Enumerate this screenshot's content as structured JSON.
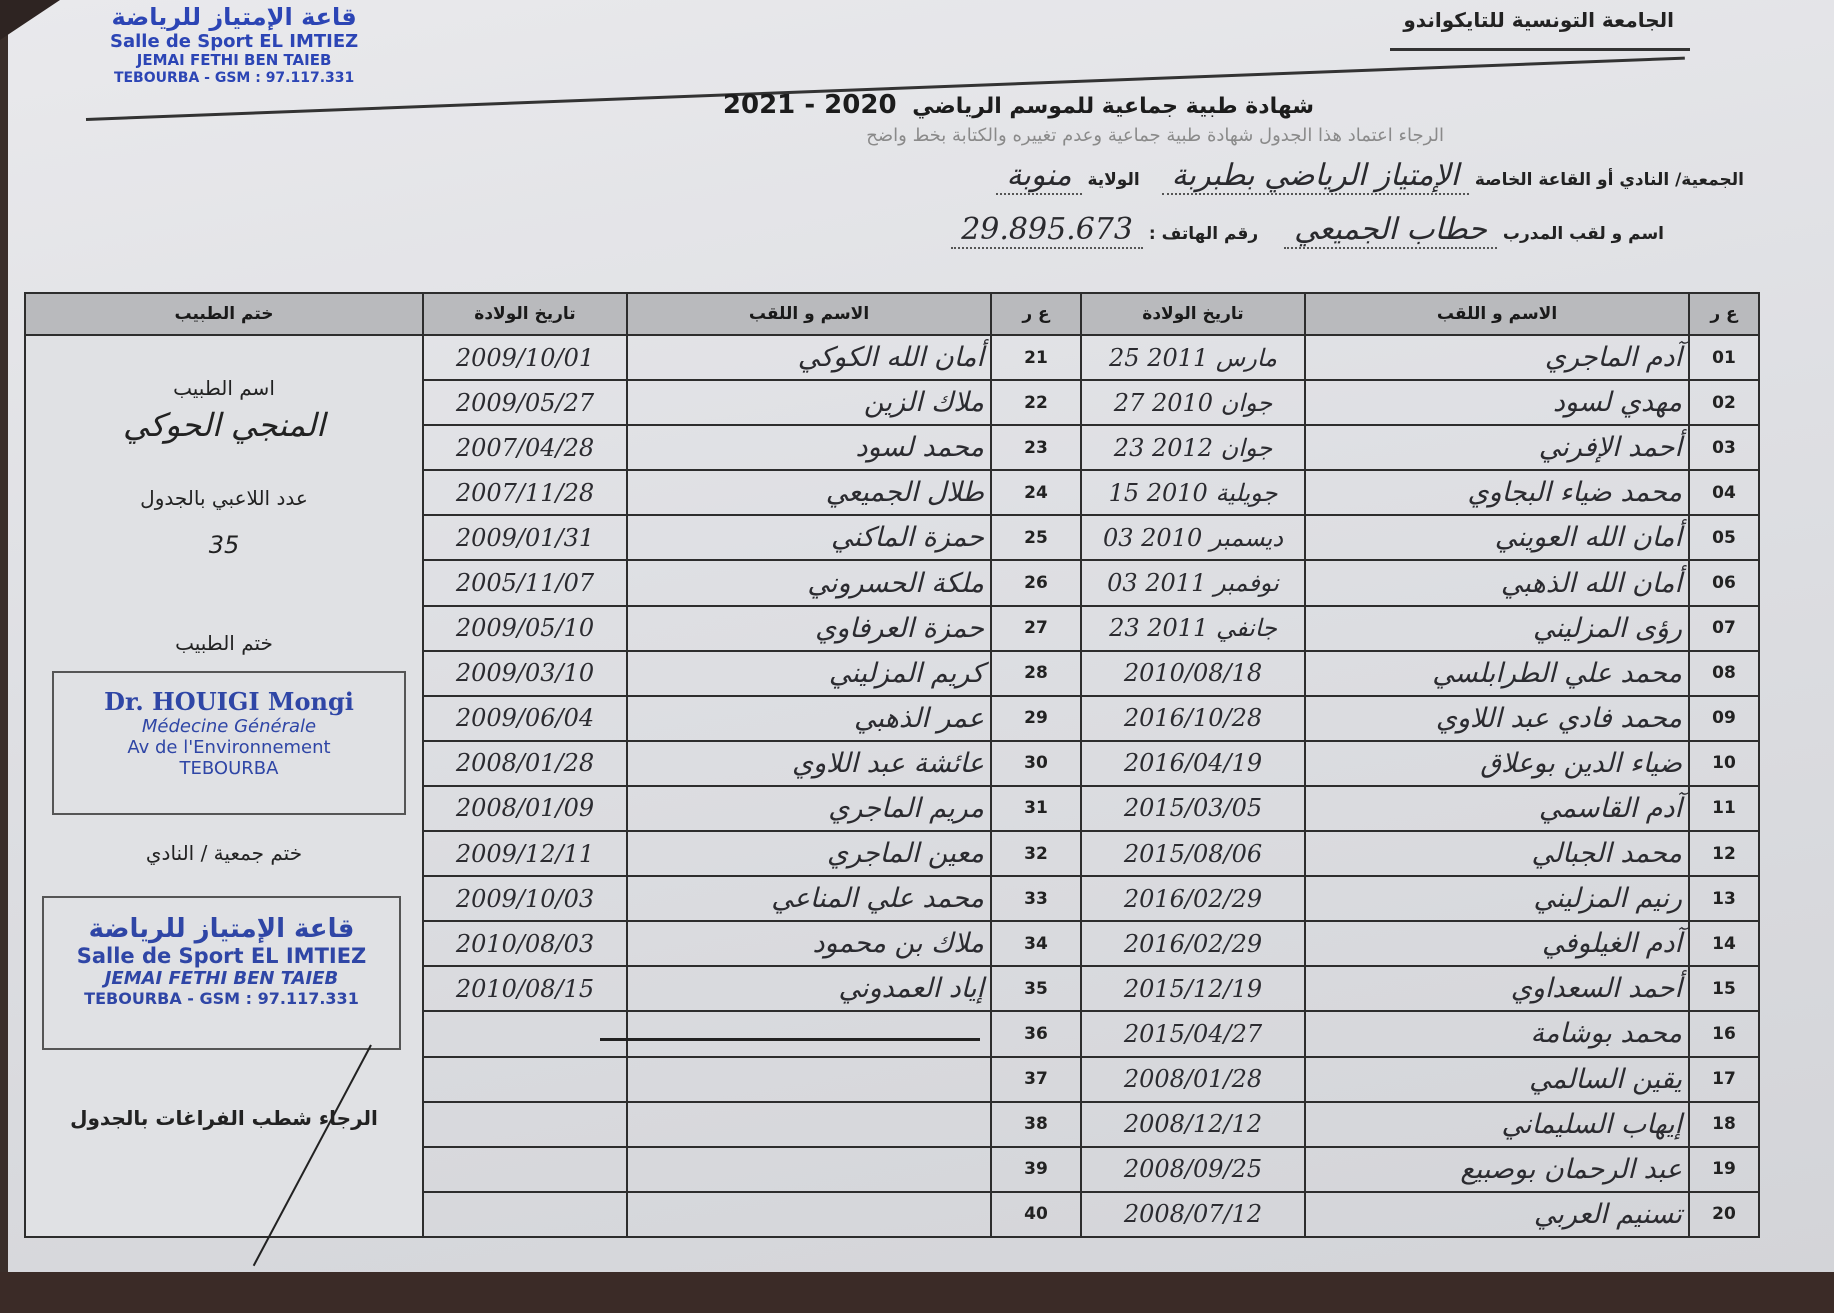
{
  "header": {
    "organization": "الجامعة التونسية للتايكواندو",
    "title": "شهادة طبية جماعية للموسم الرياضي",
    "season": "2020 - 2021",
    "instruction": "الرجاء اعتماد هذا الجدول شهادة طبية جماعية وعدم تغييره والكتابة بخط واضح"
  },
  "fields": {
    "club_label": "الجمعية/ النادي أو القاعة الخاصة",
    "club_value": "الإمتياز الرياضي بطبربة",
    "governorate_label": "الولاية",
    "governorate_value": "منوبة",
    "coach_label": "اسم و لقب المدرب",
    "coach_value": "حطاب الجميعي",
    "phone_label": "رقم الهاتف :",
    "phone_value": "29.895.673"
  },
  "table": {
    "headers": {
      "num": "ع ر",
      "name": "الاسم و اللقب",
      "dob": "تاريخ الولادة",
      "doctor": "ختم الطبيب"
    },
    "rows": [
      {
        "r_num": "01",
        "r_name": "آدم الماجري",
        "r_dob": "25 مارس 2011",
        "l_num": "21",
        "l_name": "أمان الله الكوكي",
        "l_dob": "2009/10/01"
      },
      {
        "r_num": "02",
        "r_name": "مهدي لسود",
        "r_dob": "27 جوان 2010",
        "l_num": "22",
        "l_name": "ملاك الزين",
        "l_dob": "2009/05/27"
      },
      {
        "r_num": "03",
        "r_name": "أحمد الإفرني",
        "r_dob": "23 جوان 2012",
        "l_num": "23",
        "l_name": "محمد لسود",
        "l_dob": "2007/04/28"
      },
      {
        "r_num": "04",
        "r_name": "محمد ضياء البجاوي",
        "r_dob": "15 جويلية 2010",
        "l_num": "24",
        "l_name": "طلال الجميعي",
        "l_dob": "2007/11/28"
      },
      {
        "r_num": "05",
        "r_name": "أمان الله العويني",
        "r_dob": "03 ديسمبر 2010",
        "l_num": "25",
        "l_name": "حمزة الماكني",
        "l_dob": "2009/01/31"
      },
      {
        "r_num": "06",
        "r_name": "أمان الله الذهبي",
        "r_dob": "03 نوفمبر 2011",
        "l_num": "26",
        "l_name": "ملكة الحسروني",
        "l_dob": "2005/11/07"
      },
      {
        "r_num": "07",
        "r_name": "رؤى المزليني",
        "r_dob": "23 جانفي 2011",
        "l_num": "27",
        "l_name": "حمزة العرفاوي",
        "l_dob": "2009/05/10"
      },
      {
        "r_num": "08",
        "r_name": "محمد علي الطرابلسي",
        "r_dob": "2010/08/18",
        "l_num": "28",
        "l_name": "كريم المزليني",
        "l_dob": "2009/03/10"
      },
      {
        "r_num": "09",
        "r_name": "محمد فادي عبد اللاوي",
        "r_dob": "2016/10/28",
        "l_num": "29",
        "l_name": "عمر الذهبي",
        "l_dob": "2009/06/04"
      },
      {
        "r_num": "10",
        "r_name": "ضياء الدين بوعلاق",
        "r_dob": "2016/04/19",
        "l_num": "30",
        "l_name": "عائشة عبد اللاوي",
        "l_dob": "2008/01/28"
      },
      {
        "r_num": "11",
        "r_name": "آدم القاسمي",
        "r_dob": "2015/03/05",
        "l_num": "31",
        "l_name": "مريم الماجري",
        "l_dob": "2008/01/09"
      },
      {
        "r_num": "12",
        "r_name": "محمد الجبالي",
        "r_dob": "2015/08/06",
        "l_num": "32",
        "l_name": "معين الماجري",
        "l_dob": "2009/12/11"
      },
      {
        "r_num": "13",
        "r_name": "رنيم المزليني",
        "r_dob": "2016/02/29",
        "l_num": "33",
        "l_name": "محمد علي المناعي",
        "l_dob": "2009/10/03"
      },
      {
        "r_num": "14",
        "r_name": "آدم الغيلوفي",
        "r_dob": "2016/02/29",
        "l_num": "34",
        "l_name": "ملاك بن محمود",
        "l_dob": "2010/08/03"
      },
      {
        "r_num": "15",
        "r_name": "أحمد السعداوي",
        "r_dob": "2015/12/19",
        "l_num": "35",
        "l_name": "إياد العمدوني",
        "l_dob": "2010/08/15"
      },
      {
        "r_num": "16",
        "r_name": "محمد بوشامة",
        "r_dob": "2015/04/27",
        "l_num": "36",
        "l_name": "",
        "l_dob": ""
      },
      {
        "r_num": "17",
        "r_name": "يقين السالمي",
        "r_dob": "2008/01/28",
        "l_num": "37",
        "l_name": "",
        "l_dob": ""
      },
      {
        "r_num": "18",
        "r_name": "إيهاب السليماني",
        "r_dob": "2008/12/12",
        "l_num": "38",
        "l_name": "",
        "l_dob": ""
      },
      {
        "r_num": "19",
        "r_name": "عبد الرحمان بوصبيع",
        "r_dob": "2008/09/25",
        "l_num": "39",
        "l_name": "",
        "l_dob": ""
      },
      {
        "r_num": "20",
        "r_name": "تسنيم العربي",
        "r_dob": "2008/07/12",
        "l_num": "40",
        "l_name": "",
        "l_dob": ""
      }
    ]
  },
  "doctor": {
    "name_label": "اسم الطبيب",
    "name_value": "المنجي الحوكي",
    "count_label": "عدد اللاعبي بالجدول",
    "count_value": "35",
    "stamp_label": "ختم الطبيب",
    "stamp_lines": [
      "Dr. HOUIGI Mongi",
      "Médecine Générale",
      "Av de l'Environnement",
      "TEBOURBA"
    ],
    "club_stamp_label": "ختم جمعية / النادي",
    "club_stamp_lines": [
      "قاعة الإمتياز للرياضة",
      "Salle de Sport EL IMTIEZ",
      "JEMAI FETHI BEN TAIEB",
      "TEBOURBA - GSM : 97.117.331"
    ],
    "note": "الرجاء شطب الفراغات بالجدول"
  },
  "colors": {
    "stamp_ink": "#2c45b5",
    "header_fill": "#b9babd"
  }
}
